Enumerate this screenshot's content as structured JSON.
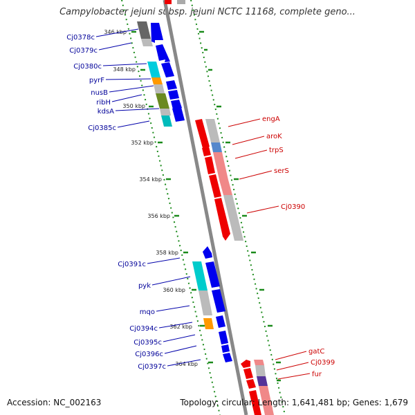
{
  "title": "Campylobacter jejuni subsp. jejuni NCTC 11168, complete geno...",
  "accession": "Accession: NC_002163",
  "footer": "Topology: circular; Length: 1,641,481 bp; Genes: 1,679",
  "colors": {
    "forward": "#0000ee",
    "reverse": "#ee0000",
    "backbone": "#888888",
    "tick": "#1a8a1a",
    "forward_label": "#000099",
    "reverse_label": "#cc0000"
  },
  "kbp_labels": [
    "346 kbp",
    "348 kbp",
    "350 kbp",
    "352 kbp",
    "354 kbp",
    "356 kbp",
    "358 kbp",
    "360 kbp",
    "362 kbp",
    "364 kbp"
  ],
  "left_genes": [
    "Cj0378c",
    "Cj0379c",
    "Cj0380c",
    "pyrF",
    "nusB",
    "ribH",
    "kdsA",
    "Cj0385c",
    "Cj0391c",
    "pyk",
    "mqo",
    "Cj0394c",
    "Cj0395c",
    "Cj0396c",
    "Cj0397c"
  ],
  "right_genes": [
    "engA",
    "aroK",
    "trpS",
    "serS",
    "Cj0390",
    "gatC",
    "Cj0399",
    "fur"
  ]
}
